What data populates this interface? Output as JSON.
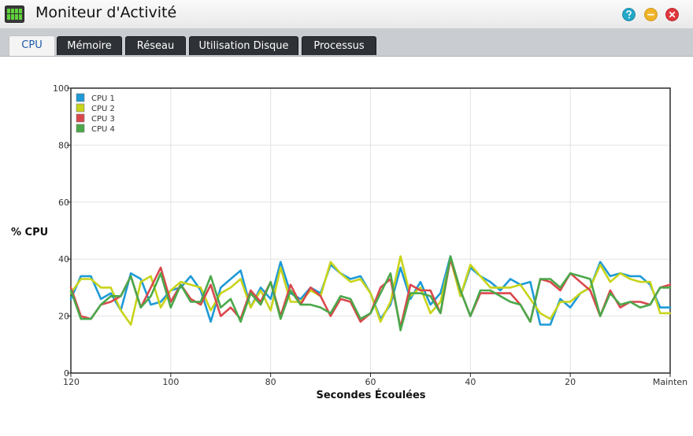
{
  "app": {
    "title": "Moniteur d'Activité"
  },
  "window_buttons": [
    {
      "name": "help",
      "icon": "help-icon",
      "color": "#26a8c9"
    },
    {
      "name": "minimize",
      "icon": "minimize-icon",
      "color": "#f0b42a"
    },
    {
      "name": "close",
      "icon": "close-icon",
      "color": "#e0373c"
    }
  ],
  "tabs": [
    {
      "label": "CPU",
      "active": true
    },
    {
      "label": "Mémoire",
      "active": false
    },
    {
      "label": "Réseau",
      "active": false
    },
    {
      "label": "Utilisation Disque",
      "active": false
    },
    {
      "label": "Processus",
      "active": false
    }
  ],
  "chart_data": {
    "type": "line",
    "xlabel": "Secondes Écoulées",
    "ylabel": "% CPU",
    "xlim": [
      120,
      0
    ],
    "ylim": [
      0,
      100
    ],
    "x_ticks": [
      "120",
      "100",
      "80",
      "60",
      "40",
      "20",
      "Mainten"
    ],
    "y_ticks": [
      "0",
      "20",
      "40",
      "60",
      "80",
      "100"
    ],
    "grid": true,
    "legend_position": "top-left",
    "x": [
      120,
      118,
      116,
      114,
      112,
      110,
      108,
      106,
      104,
      102,
      100,
      98,
      96,
      94,
      92,
      90,
      88,
      86,
      84,
      82,
      80,
      78,
      76,
      74,
      72,
      70,
      68,
      66,
      64,
      62,
      60,
      58,
      56,
      54,
      52,
      50,
      48,
      46,
      44,
      42,
      40,
      38,
      36,
      34,
      32,
      30,
      28,
      26,
      24,
      22,
      20,
      18,
      16,
      14,
      12,
      10,
      8,
      6,
      4,
      2,
      0
    ],
    "series": [
      {
        "name": "CPU 1",
        "color": "#1e9ad6",
        "values": [
          26,
          34,
          34,
          26,
          28,
          22,
          35,
          33,
          24,
          25,
          29,
          30,
          34,
          29,
          18,
          30,
          33,
          36,
          23,
          30,
          26,
          39,
          28,
          26,
          30,
          28,
          38,
          35,
          33,
          34,
          28,
          19,
          24,
          37,
          26,
          32,
          24,
          28,
          41,
          27,
          37,
          34,
          32,
          29,
          33,
          31,
          32,
          17,
          17,
          26,
          23,
          28,
          30,
          39,
          34,
          35,
          34,
          34,
          31,
          23,
          23
        ]
      },
      {
        "name": "CPU 2",
        "color": "#c8d41a",
        "values": [
          28,
          33,
          33,
          30,
          30,
          22,
          17,
          32,
          34,
          23,
          29,
          32,
          31,
          30,
          22,
          28,
          30,
          33,
          23,
          29,
          22,
          37,
          25,
          25,
          29,
          27,
          39,
          35,
          32,
          33,
          28,
          18,
          25,
          41,
          27,
          30,
          21,
          25,
          40,
          27,
          38,
          34,
          30,
          30,
          30,
          31,
          26,
          21,
          19,
          25,
          25,
          28,
          30,
          38,
          32,
          35,
          33,
          32,
          32,
          21,
          21
        ]
      },
      {
        "name": "CPU 3",
        "color": "#d9474c",
        "values": [
          30,
          20,
          19,
          24,
          25,
          27,
          34,
          23,
          30,
          37,
          25,
          31,
          26,
          24,
          31,
          20,
          23,
          19,
          29,
          25,
          32,
          20,
          31,
          24,
          30,
          27,
          20,
          26,
          25,
          18,
          21,
          30,
          33,
          16,
          31,
          29,
          29,
          21,
          40,
          29,
          20,
          28,
          28,
          28,
          28,
          24,
          18,
          33,
          32,
          29,
          35,
          32,
          29,
          20,
          29,
          23,
          25,
          25,
          24,
          30,
          31
        ]
      },
      {
        "name": "CPU 4",
        "color": "#4aa84a",
        "values": [
          29,
          19,
          19,
          24,
          27,
          27,
          34,
          23,
          27,
          35,
          23,
          31,
          25,
          25,
          34,
          23,
          26,
          18,
          28,
          24,
          32,
          19,
          29,
          24,
          24,
          23,
          21,
          27,
          26,
          19,
          21,
          28,
          35,
          15,
          28,
          28,
          27,
          21,
          41,
          29,
          20,
          29,
          29,
          27,
          25,
          24,
          18,
          33,
          33,
          30,
          35,
          34,
          33,
          20,
          28,
          24,
          25,
          23,
          24,
          30,
          30
        ]
      }
    ]
  }
}
